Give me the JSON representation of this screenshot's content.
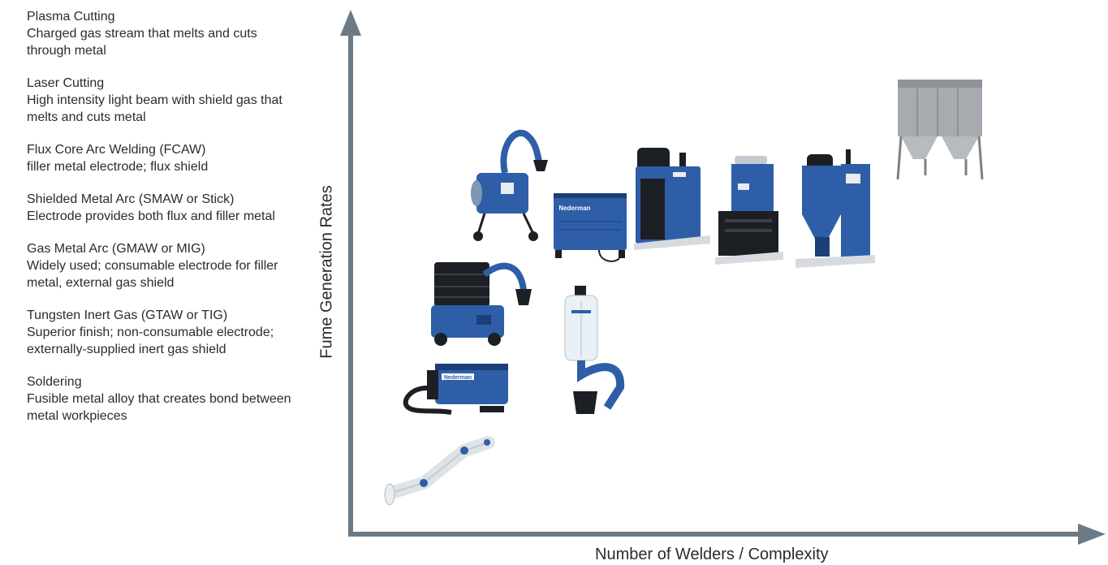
{
  "processes": [
    {
      "name": "Plasma Cutting",
      "description": "Charged gas stream that melts and cuts through metal"
    },
    {
      "name": "Laser Cutting",
      "description": "High intensity light beam with shield gas that melts and cuts metal"
    },
    {
      "name": "Flux Core Arc Welding (FCAW)",
      "description": "filler metal electrode; flux shield"
    },
    {
      "name": "Shielded Metal Arc (SMAW or Stick)",
      "description": "Electrode provides both flux and filler metal"
    },
    {
      "name": "Gas Metal Arc (GMAW or MIG)",
      "description": "Widely used; consumable electrode for filler metal, external gas shield"
    },
    {
      "name": "Tungsten Inert Gas (GTAW or TIG)",
      "description": "Superior finish; non-consumable electrode; externally-supplied inert gas shield"
    },
    {
      "name": "Soldering",
      "description": "Fusible metal alloy that creates bond between metal workpieces"
    }
  ],
  "axes": {
    "y_label": "Fume Generation Rates",
    "x_label": "Number of Welders / Complexity"
  },
  "brand_text": "Nederman",
  "colors": {
    "axis": "#6b7a84",
    "product_blue": "#2e5ea8",
    "product_dark": "#1c1f24",
    "steel": "#a7abaf"
  }
}
